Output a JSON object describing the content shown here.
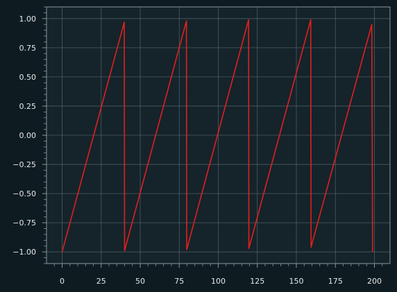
{
  "chart_data": {
    "type": "line",
    "title": "",
    "xlabel": "",
    "ylabel": "",
    "grid": true,
    "xlim": [
      -10,
      210
    ],
    "ylim": [
      -1.1,
      1.1
    ],
    "xticks": [
      0,
      25,
      50,
      75,
      100,
      125,
      150,
      175,
      200
    ],
    "yticks": [
      -1.0,
      -0.75,
      -0.5,
      -0.25,
      0.0,
      0.25,
      0.5,
      0.75,
      1.0
    ],
    "xtick_labels": [
      "0",
      "25",
      "50",
      "75",
      "100",
      "125",
      "150",
      "175",
      "200"
    ],
    "ytick_labels": [
      "−1.00",
      "−0.75",
      "−0.50",
      "−0.25",
      "0.00",
      "0.25",
      "0.50",
      "0.75",
      "1.00"
    ],
    "series": [
      {
        "color": "#e0201f",
        "x": [
          0,
          39.8,
          40.0,
          79.6,
          79.8,
          119.4,
          119.6,
          159.2,
          159.4,
          198.3,
          198.8
        ],
        "y": [
          -1.0,
          0.97,
          -0.99,
          0.98,
          -0.98,
          0.99,
          -0.97,
          0.99,
          -0.96,
          0.95,
          -1.0
        ]
      }
    ]
  },
  "colors": {
    "page_background": "#0e1c22",
    "plot_background": "#15232a",
    "grid": "#5a6a70",
    "axis": "#8a979c",
    "text": "#e6e9ea",
    "line": "#e0201f"
  }
}
